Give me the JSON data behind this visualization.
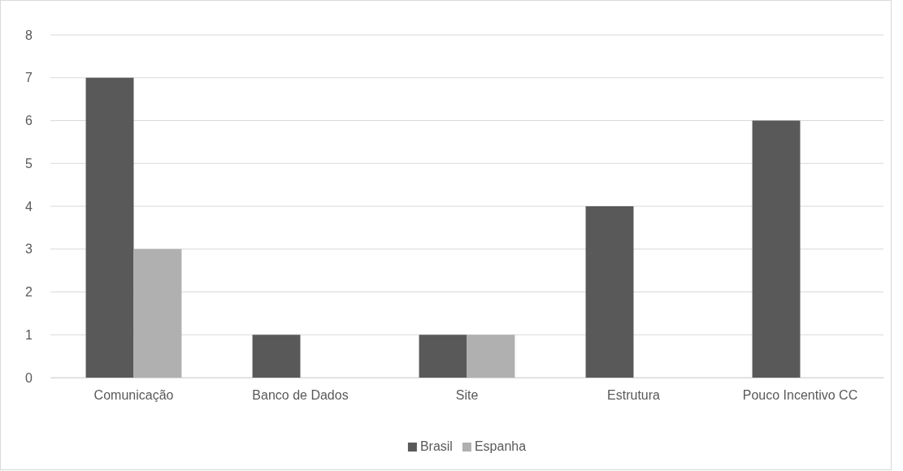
{
  "chart_data": {
    "type": "bar",
    "categories": [
      "Comunicação",
      "Banco de Dados",
      "Site",
      "Estrutura",
      "Pouco Incentivo CC"
    ],
    "series": [
      {
        "name": "Brasil",
        "color": "#595959",
        "values": [
          7,
          1,
          1,
          4,
          6
        ]
      },
      {
        "name": "Espanha",
        "color": "#b0b0b0",
        "values": [
          3,
          0,
          1,
          0,
          0
        ]
      }
    ],
    "ylim": [
      0,
      8
    ],
    "yticks": [
      0,
      1,
      2,
      3,
      4,
      5,
      6,
      7,
      8
    ],
    "grid": "y",
    "legend": "bottom"
  }
}
